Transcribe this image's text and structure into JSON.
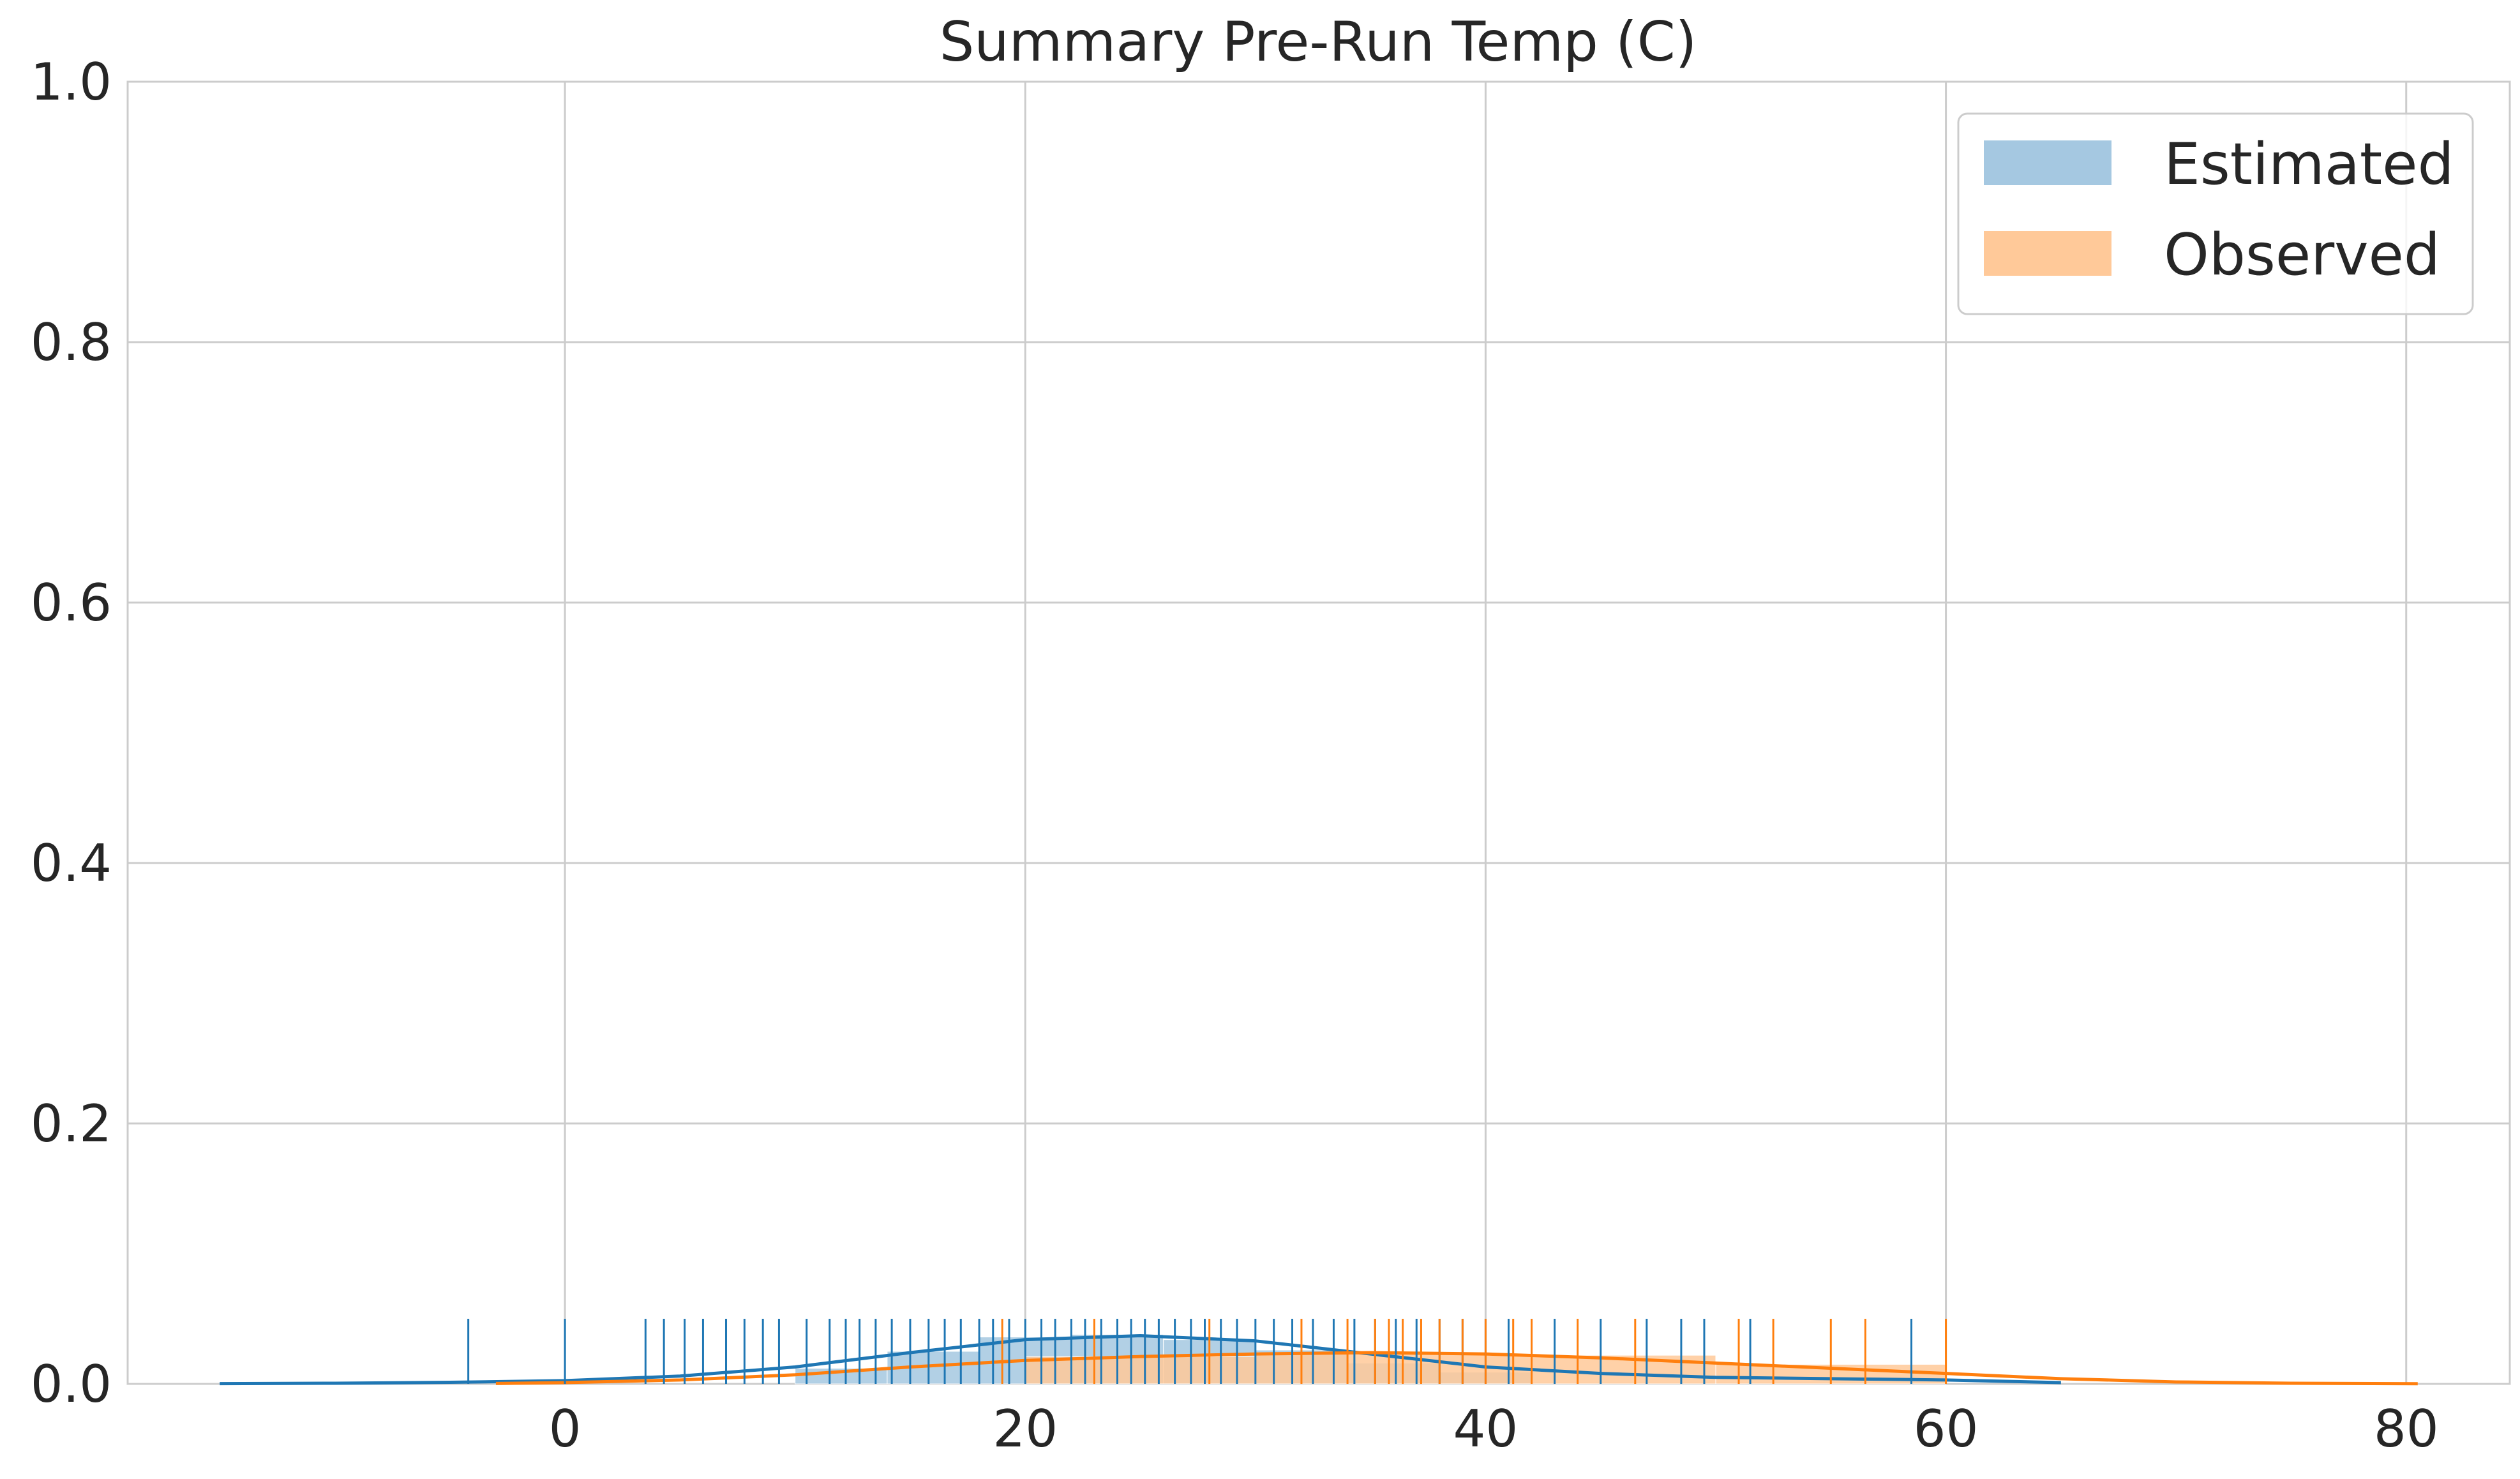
{
  "chart_data": {
    "type": "histogram-kde-rug",
    "title": "Summary Pre-Run Temp (C)",
    "xlabel": "",
    "ylabel": "",
    "xlim": [
      -19,
      84.5
    ],
    "ylim": [
      0.0,
      1.0
    ],
    "xticks": [
      "0",
      "20",
      "40",
      "60",
      "80"
    ],
    "xtick_values": [
      0,
      20,
      40,
      60,
      80
    ],
    "yticks": [
      "0.0",
      "0.2",
      "0.4",
      "0.6",
      "0.8",
      "1.0"
    ],
    "ytick_values": [
      0.0,
      0.2,
      0.4,
      0.6,
      0.8,
      1.0
    ],
    "grid": true,
    "legend_position": "top-right",
    "series": [
      {
        "name": "Estimated",
        "line_color": "#1f77b4",
        "fill_color": "#a5c8e1",
        "hist_bins": [
          {
            "x0": 10,
            "x1": 14,
            "density": 0.012
          },
          {
            "x0": 14,
            "x1": 18,
            "density": 0.025
          },
          {
            "x0": 18,
            "x1": 22,
            "density": 0.036
          },
          {
            "x0": 22,
            "x1": 26,
            "density": 0.038
          },
          {
            "x0": 26,
            "x1": 30,
            "density": 0.034
          },
          {
            "x0": 30,
            "x1": 34,
            "density": 0.026
          },
          {
            "x0": 34,
            "x1": 38,
            "density": 0.016
          },
          {
            "x0": 38,
            "x1": 42,
            "density": 0.009
          }
        ],
        "kde_x": [
          -15,
          -10,
          -5,
          0,
          5,
          10,
          15,
          20,
          25,
          30,
          35,
          40,
          45,
          50,
          55,
          60,
          65
        ],
        "kde_y": [
          0.0002,
          0.0005,
          0.0012,
          0.0025,
          0.006,
          0.013,
          0.024,
          0.034,
          0.037,
          0.033,
          0.023,
          0.013,
          0.008,
          0.005,
          0.004,
          0.003,
          0.001
        ],
        "rug": [
          -4.2,
          0,
          3.5,
          4.3,
          5.2,
          6,
          7,
          7.8,
          8.6,
          9.3,
          10.5,
          11.5,
          12.2,
          12.8,
          13.5,
          14.2,
          15,
          15.8,
          16.5,
          17.2,
          18,
          18.6,
          19.3,
          20,
          20.7,
          21.3,
          22,
          22.6,
          23.3,
          24,
          24.6,
          25.2,
          25.8,
          26.5,
          27.2,
          27.8,
          28.5,
          29.2,
          30,
          30.8,
          31.6,
          32.5,
          33.4,
          34.3,
          35.2,
          36.1,
          37,
          38,
          39,
          40,
          41,
          43,
          45,
          47,
          48.5,
          49.5,
          51.5,
          58.5
        ]
      },
      {
        "name": "Observed",
        "line_color": "#ff7f0e",
        "fill_color": "#ffc999",
        "hist_bins": [
          {
            "x0": 20,
            "x1": 30,
            "density": 0.021
          },
          {
            "x0": 30,
            "x1": 40,
            "density": 0.024
          },
          {
            "x0": 40,
            "x1": 50,
            "density": 0.022
          },
          {
            "x0": 50,
            "x1": 60,
            "density": 0.015
          }
        ],
        "kde_x": [
          -3,
          0,
          5,
          10,
          15,
          20,
          25,
          30,
          35,
          40,
          45,
          50,
          55,
          60,
          65,
          70,
          75,
          80.5
        ],
        "kde_y": [
          0.0003,
          0.001,
          0.003,
          0.007,
          0.013,
          0.018,
          0.021,
          0.023,
          0.024,
          0.023,
          0.02,
          0.016,
          0.012,
          0.008,
          0.004,
          0.0015,
          0.0005,
          0.0001
        ],
        "rug": [
          19,
          23,
          28,
          32,
          34,
          35.2,
          35.8,
          36.4,
          37.2,
          38,
          39,
          40,
          41.2,
          42,
          44,
          46.5,
          51,
          52.5,
          55,
          56.5,
          60
        ]
      }
    ]
  }
}
